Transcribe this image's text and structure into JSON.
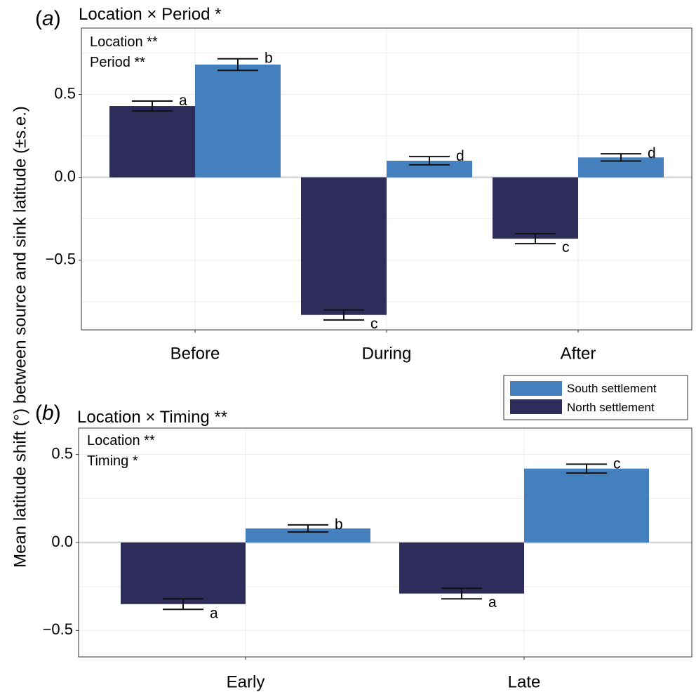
{
  "ylabel": "Mean latitude shift (°) between source and sink latitude (±s.e.)",
  "legend": [
    {
      "label": "South settlement",
      "color": "#4480BD"
    },
    {
      "label": "North settlement",
      "color": "#2E2C5A"
    }
  ],
  "chart_data": [
    {
      "type": "bar",
      "panel_letter": "a",
      "title": "Location × Period *",
      "annotations": [
        "Location **",
        "Period **"
      ],
      "categories": [
        "Before",
        "During",
        "After"
      ],
      "ylim": [
        -0.92,
        0.9
      ],
      "yticks": [
        0.5,
        0.0,
        -0.5
      ],
      "ytick_labels": [
        "0.5",
        "0.0",
        "−0.5"
      ],
      "grid": true,
      "series": [
        {
          "name": "North settlement",
          "color": "#2E2C5A",
          "values": [
            0.43,
            -0.83,
            -0.37
          ],
          "se": [
            0.03,
            0.03,
            0.03
          ],
          "letters": [
            "a",
            "c",
            "c"
          ]
        },
        {
          "name": "South settlement",
          "color": "#4480BD",
          "values": [
            0.68,
            0.1,
            0.12
          ],
          "se": [
            0.035,
            0.025,
            0.022
          ],
          "letters": [
            "b",
            "d",
            "d"
          ]
        }
      ]
    },
    {
      "type": "bar",
      "panel_letter": "b",
      "title": "Location × Timing **",
      "annotations": [
        "Location **",
        "Timing *"
      ],
      "categories": [
        "Early",
        "Late"
      ],
      "ylim": [
        -0.65,
        0.65
      ],
      "yticks": [
        0.5,
        0.0,
        -0.5
      ],
      "ytick_labels": [
        "0.5",
        "0.0",
        "−0.5"
      ],
      "grid": true,
      "series": [
        {
          "name": "North settlement",
          "color": "#2E2C5A",
          "values": [
            -0.35,
            -0.29
          ],
          "se": [
            0.03,
            0.03
          ],
          "letters": [
            "a",
            "a"
          ]
        },
        {
          "name": "South settlement",
          "color": "#4480BD",
          "values": [
            0.08,
            0.42
          ],
          "se": [
            0.02,
            0.025
          ],
          "letters": [
            "b",
            "c"
          ]
        }
      ]
    }
  ]
}
